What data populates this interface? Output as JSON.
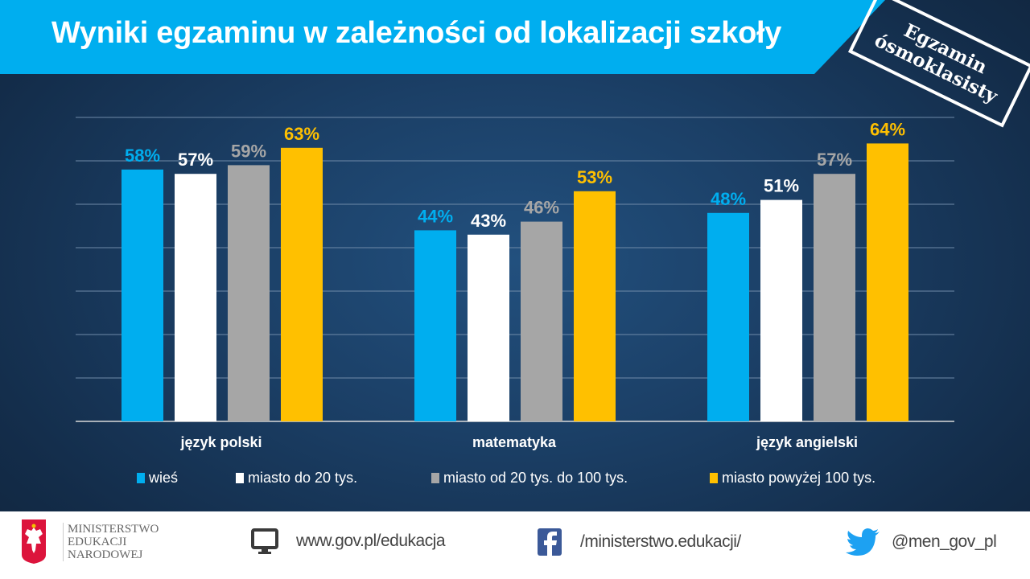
{
  "header": {
    "title": "Wyniki egzaminu w zależności od lokalizacji szkoły"
  },
  "stamp": {
    "line1": "Egzamin",
    "line2": "ósmoklasisty"
  },
  "colors": {
    "wies": "#00aeef",
    "miasto_do_20": "#ffffff",
    "miasto_20_100": "#a6a6a6",
    "miasto_powyzej_100": "#ffc000",
    "header": "#00aeef"
  },
  "chart_data": {
    "type": "bar",
    "title": "Wyniki egzaminu w zależności od lokalizacji szkoły",
    "categories": [
      "język polski",
      "matematyka",
      "język angielski"
    ],
    "series": [
      {
        "name": "wieś",
        "color": "#00aeef",
        "values": [
          58,
          44,
          48
        ],
        "labels": [
          "58%",
          "44%",
          "48%"
        ]
      },
      {
        "name": "miasto do 20 tys.",
        "color": "#ffffff",
        "values": [
          57,
          43,
          51
        ],
        "labels": [
          "57%",
          "43%",
          "51%"
        ]
      },
      {
        "name": "miasto od 20 tys. do 100 tys.",
        "color": "#a6a6a6",
        "values": [
          59,
          46,
          57
        ],
        "labels": [
          "59%",
          "46%",
          "57%"
        ]
      },
      {
        "name": "miasto powyżej 100 tys.",
        "color": "#ffc000",
        "values": [
          63,
          53,
          64
        ],
        "labels": [
          "63%",
          "53%",
          "64%"
        ]
      }
    ],
    "ylim": [
      0,
      70
    ],
    "ygrid_step": 10,
    "grid": true,
    "legend": "bottom",
    "xlabel": "",
    "ylabel": ""
  },
  "footer": {
    "ministry": [
      "MINISTERSTWO",
      "EDUKACJI",
      "NARODOWEJ"
    ],
    "website": "www.gov.pl/edukacja",
    "facebook": "/ministerstwo.edukacji/",
    "twitter": "@men_gov_pl"
  }
}
